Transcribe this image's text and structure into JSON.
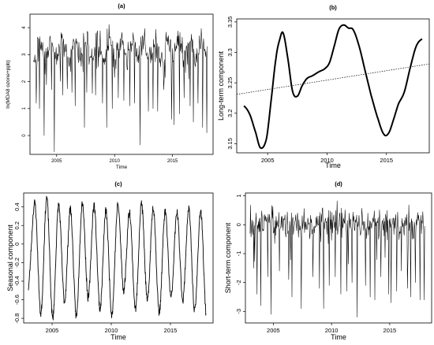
{
  "chart_data": [
    {
      "id": "a",
      "type": "line",
      "title": "(a)",
      "xlabel": "Time",
      "ylabel": "ln(MDA8 ozone+ppb)",
      "xlim": [
        2002.7,
        2018.5
      ],
      "ylim": [
        -0.7,
        4.5
      ],
      "xticks": [
        2005,
        2010,
        2015
      ],
      "yticks": [
        0,
        1,
        2,
        3,
        4
      ],
      "grid": false,
      "style": {
        "label_size": "small"
      },
      "series": [
        {
          "start": 2003.0,
          "end": 2018.0,
          "step": 0.04,
          "seed": 11,
          "kind": "log_ozone",
          "baseline": 3.2,
          "seasonal_amplitude": 0.35,
          "noise": 0.42,
          "max": 4.3,
          "dips": [
            [
              2003.25,
              1.2
            ],
            [
              2003.5,
              1.0
            ],
            [
              2003.9,
              0.0
            ],
            [
              2004.55,
              1.7
            ],
            [
              2004.8,
              -0.6
            ],
            [
              2005.5,
              1.5
            ],
            [
              2006.3,
              1.6
            ],
            [
              2006.6,
              1.1
            ],
            [
              2007.4,
              0.3
            ],
            [
              2007.6,
              1.6
            ],
            [
              2008.35,
              1.5
            ],
            [
              2008.95,
              1.2
            ],
            [
              2009.3,
              0.3
            ],
            [
              2009.8,
              1.0
            ],
            [
              2010.3,
              1.4
            ],
            [
              2010.8,
              1.3
            ],
            [
              2011.3,
              1.1
            ],
            [
              2011.7,
              1.2
            ],
            [
              2012.2,
              -0.35
            ],
            [
              2012.9,
              0.9
            ],
            [
              2013.3,
              1.0
            ],
            [
              2013.7,
              0.9
            ],
            [
              2014.25,
              1.7
            ],
            [
              2014.9,
              0.6
            ],
            [
              2015.1,
              0.4
            ],
            [
              2015.6,
              0.8
            ],
            [
              2016.0,
              1.4
            ],
            [
              2016.5,
              1.1
            ],
            [
              2016.8,
              0.5
            ],
            [
              2017.2,
              1.2
            ],
            [
              2017.6,
              0.3
            ],
            [
              2017.95,
              0.1
            ]
          ]
        }
      ]
    },
    {
      "id": "b",
      "type": "line",
      "title": "(b)",
      "xlabel": "Time",
      "ylabel": "Long-term component",
      "xlim": [
        2002.4,
        2018.6
      ],
      "ylim": [
        3.135,
        3.355
      ],
      "xticks": [
        2005,
        2010,
        2015
      ],
      "yticks": [
        3.15,
        3.2,
        3.25,
        3.3,
        3.35
      ],
      "grid": false,
      "style": {
        "label_size": "large"
      },
      "series": [
        {
          "kind": "smooth",
          "x": [
            2003.0,
            2003.5,
            2004.0,
            2004.4,
            2004.9,
            2005.3,
            2005.7,
            2006.0,
            2006.3,
            2006.7,
            2007.1,
            2007.5,
            2007.9,
            2008.3,
            2008.8,
            2009.3,
            2009.8,
            2010.2,
            2010.6,
            2011.0,
            2011.4,
            2011.8,
            2012.2,
            2012.7,
            2013.2,
            2013.7,
            2014.3,
            2014.8,
            2015.2,
            2015.6,
            2016.0,
            2016.5,
            2017.0,
            2017.5,
            2018.0
          ],
          "values": [
            3.212,
            3.198,
            3.168,
            3.143,
            3.158,
            3.222,
            3.29,
            3.32,
            3.332,
            3.29,
            3.236,
            3.228,
            3.245,
            3.257,
            3.262,
            3.268,
            3.273,
            3.283,
            3.31,
            3.338,
            3.345,
            3.34,
            3.337,
            3.31,
            3.27,
            3.23,
            3.19,
            3.165,
            3.168,
            3.19,
            3.215,
            3.235,
            3.275,
            3.31,
            3.322
          ],
          "line": "solid",
          "weight": "bold"
        },
        {
          "kind": "trend",
          "x": [
            2002.4,
            2018.6
          ],
          "values": [
            3.231,
            3.281
          ],
          "line": "dotted"
        }
      ]
    },
    {
      "id": "c",
      "type": "line",
      "title": "(c)",
      "xlabel": "Time",
      "ylabel": "Seasonal component",
      "xlim": [
        2002.6,
        2018.6
      ],
      "ylim": [
        -0.85,
        0.55
      ],
      "xticks": [
        2005,
        2010,
        2015
      ],
      "yticks": [
        -0.8,
        -0.6,
        -0.4,
        -0.2,
        0.0,
        0.2,
        0.4
      ],
      "grid": false,
      "style": {
        "label_size": "large"
      },
      "series": [
        {
          "start": 2003.0,
          "end": 2018.0,
          "step": 0.02,
          "seed": 23,
          "kind": "seasonal",
          "first_peak": 2003.55,
          "peaks": [
            0.44,
            0.5,
            0.42,
            0.38,
            0.45,
            0.42,
            0.36,
            0.42,
            0.35,
            0.44,
            0.4,
            0.35,
            0.34,
            0.38,
            0.36
          ],
          "troughs": [
            -0.5,
            -0.75,
            -0.8,
            -0.62,
            -0.78,
            -0.58,
            -0.7,
            -0.76,
            -0.5,
            -0.7,
            -0.62,
            -0.74,
            -0.58,
            -0.6,
            -0.72,
            -0.75
          ]
        }
      ]
    },
    {
      "id": "d",
      "type": "line",
      "title": "(d)",
      "xlabel": "Time",
      "ylabel": "Short-term component",
      "xlim": [
        2002.6,
        2018.6
      ],
      "ylim": [
        -3.4,
        1.1
      ],
      "xticks": [
        2005,
        2010,
        2015
      ],
      "yticks": [
        -3,
        -2,
        -1,
        0,
        1
      ],
      "grid": false,
      "style": {
        "label_size": "large"
      },
      "series": [
        {
          "start": 2003.0,
          "end": 2018.0,
          "step": 0.04,
          "seed": 37,
          "kind": "residual",
          "noise": 0.55,
          "max": 1.05,
          "dips": [
            [
              2003.3,
              -1.5
            ],
            [
              2003.6,
              -2.4
            ],
            [
              2003.9,
              -2.8
            ],
            [
              2004.5,
              -1.8
            ],
            [
              2004.8,
              -3.1
            ],
            [
              2005.5,
              -1.6
            ],
            [
              2006.3,
              -1.9
            ],
            [
              2006.6,
              -2.5
            ],
            [
              2007.4,
              -2.9
            ],
            [
              2008.4,
              -1.8
            ],
            [
              2008.95,
              -2.2
            ],
            [
              2009.3,
              -2.9
            ],
            [
              2009.8,
              -2.1
            ],
            [
              2010.3,
              -1.8
            ],
            [
              2010.8,
              -2.4
            ],
            [
              2011.3,
              -2.3
            ],
            [
              2011.75,
              -2.0
            ],
            [
              2012.2,
              -3.2
            ],
            [
              2012.9,
              -2.1
            ],
            [
              2013.3,
              -2.5
            ],
            [
              2013.7,
              -2.6
            ],
            [
              2014.25,
              -1.8
            ],
            [
              2014.9,
              -2.4
            ],
            [
              2015.1,
              -2.7
            ],
            [
              2015.6,
              -2.3
            ],
            [
              2016.0,
              -1.6
            ],
            [
              2016.5,
              -2.2
            ],
            [
              2016.8,
              -2.5
            ],
            [
              2017.2,
              -2.0
            ],
            [
              2017.6,
              -2.6
            ],
            [
              2017.95,
              -2.6
            ]
          ]
        }
      ]
    }
  ]
}
